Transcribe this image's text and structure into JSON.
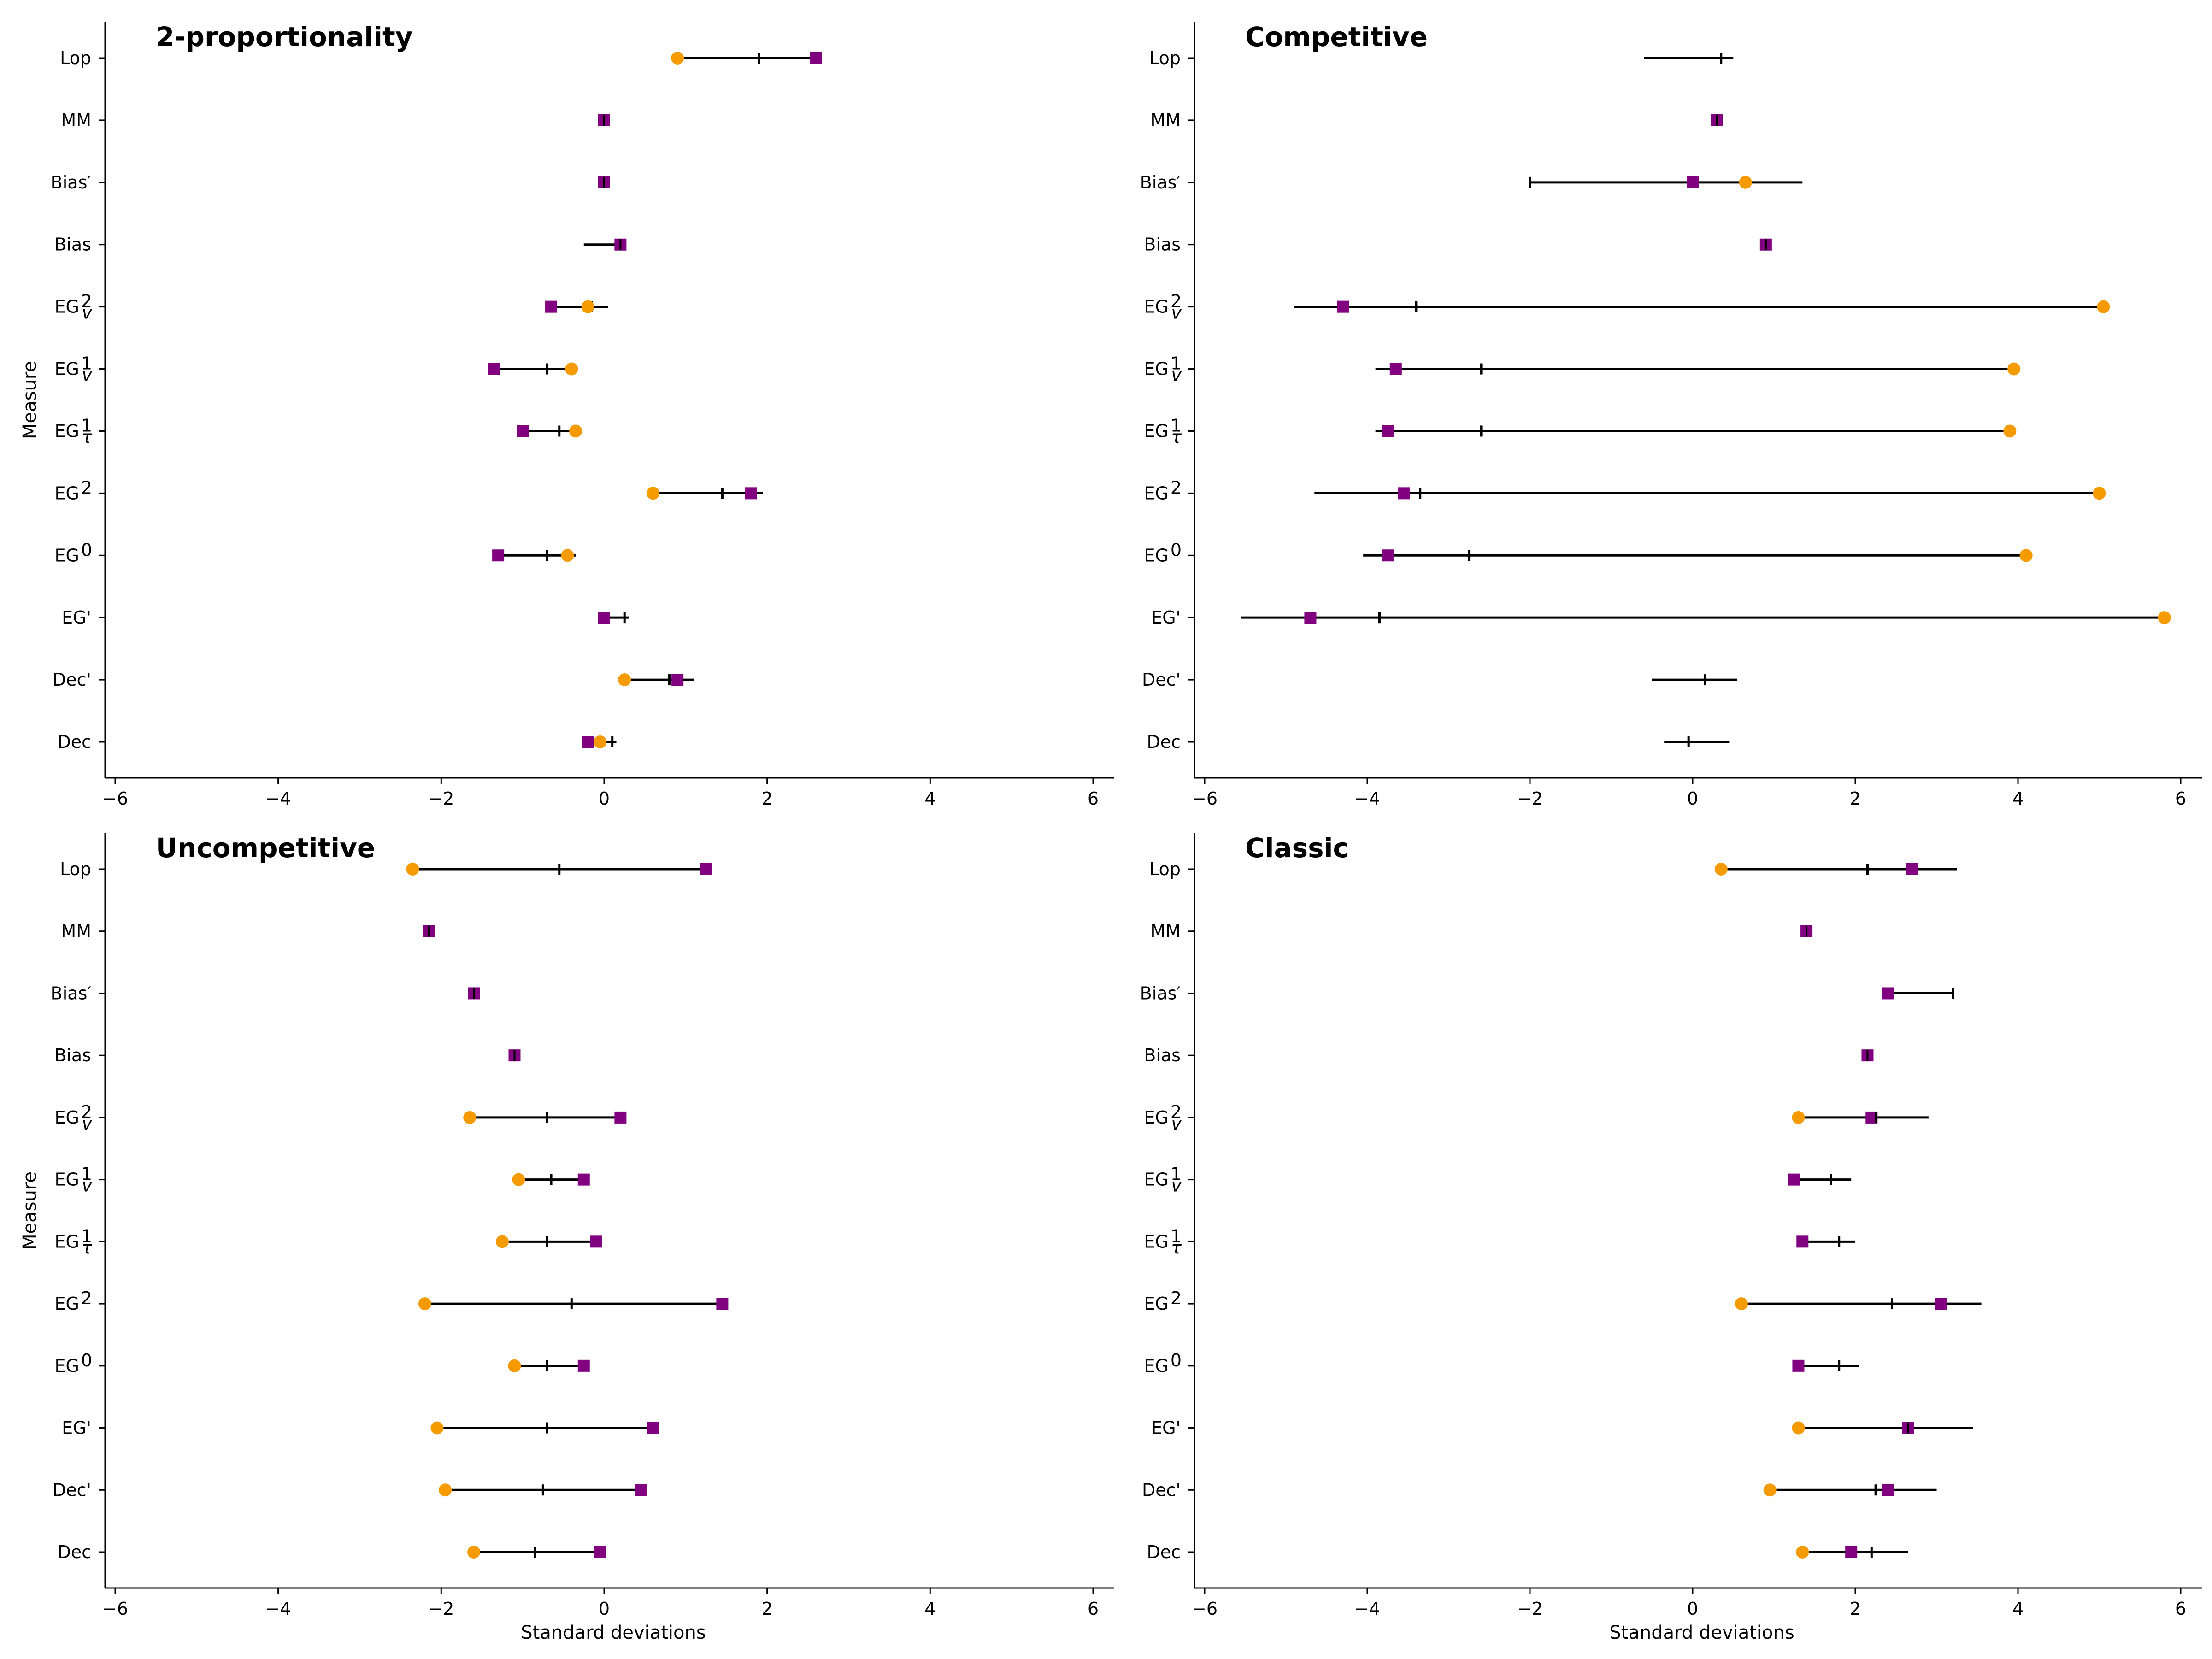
{
  "chart_data": {
    "type": "dot-range",
    "layout": "2x2 panels",
    "xlabel": "Standard deviations",
    "ylabel": "Measure",
    "xlim": [
      -6,
      6
    ],
    "xticks": [
      -6,
      -4,
      -2,
      0,
      2,
      4,
      6
    ],
    "xtick_labels": [
      "−6",
      "−4",
      "−2",
      "0",
      "2",
      "4",
      "6"
    ],
    "categories": [
      {
        "key": "Lop",
        "base": "Lop"
      },
      {
        "key": "MM",
        "base": "MM"
      },
      {
        "key": "Bias'",
        "base": "Bias′"
      },
      {
        "key": "Bias",
        "base": "Bias"
      },
      {
        "key": "EG_v^2",
        "base": "EG",
        "sub": "v",
        "sup": "2"
      },
      {
        "key": "EG_v^1",
        "base": "EG",
        "sub": "v",
        "sup": "1"
      },
      {
        "key": "EG_tau^1",
        "base": "EG",
        "sub": "τ",
        "sup": "1"
      },
      {
        "key": "EG^2",
        "base": "EG",
        "sup": "2"
      },
      {
        "key": "EG^0",
        "base": "EG",
        "sup": "0"
      },
      {
        "key": "EG'",
        "base": "EG'"
      },
      {
        "key": "Dec'",
        "base": "Dec'"
      },
      {
        "key": "Dec",
        "base": "Dec"
      }
    ],
    "series_style": {
      "orange_marker": {
        "shape": "circle",
        "color": "#f59b00"
      },
      "purple_marker": {
        "shape": "square",
        "color": "#800080"
      },
      "range_line": {
        "color": "#000000"
      },
      "center_tick": {
        "color": "#000000"
      }
    },
    "panels": [
      {
        "title": "2-proportionality",
        "rows": [
          {
            "lo": 0.9,
            "hi": 2.6,
            "tick": 1.9,
            "orange": 0.9,
            "purple": 2.6
          },
          {
            "lo": 0.0,
            "hi": 0.0,
            "tick": 0.0,
            "orange": null,
            "purple": 0.0
          },
          {
            "lo": 0.0,
            "hi": 0.0,
            "tick": 0.0,
            "orange": null,
            "purple": 0.0
          },
          {
            "lo": -0.25,
            "hi": 0.2,
            "tick": 0.2,
            "orange": null,
            "purple": 0.2
          },
          {
            "lo": -0.65,
            "hi": 0.05,
            "tick": -0.15,
            "orange": -0.2,
            "purple": -0.65
          },
          {
            "lo": -1.35,
            "hi": -0.35,
            "tick": -0.7,
            "orange": -0.4,
            "purple": -1.35
          },
          {
            "lo": -1.0,
            "hi": -0.3,
            "tick": -0.55,
            "orange": -0.35,
            "purple": -1.0
          },
          {
            "lo": 0.6,
            "hi": 1.95,
            "tick": 1.45,
            "orange": 0.6,
            "purple": 1.8
          },
          {
            "lo": -1.3,
            "hi": -0.35,
            "tick": -0.7,
            "orange": -0.45,
            "purple": -1.3
          },
          {
            "lo": 0.0,
            "hi": 0.3,
            "tick": 0.25,
            "orange": null,
            "purple": 0.0
          },
          {
            "lo": 0.25,
            "hi": 1.1,
            "tick": 0.8,
            "orange": 0.25,
            "purple": 0.9
          },
          {
            "lo": -0.2,
            "hi": 0.15,
            "tick": 0.1,
            "orange": -0.05,
            "purple": -0.2
          }
        ]
      },
      {
        "title": "Competitive",
        "rows": [
          {
            "lo": -0.6,
            "hi": 0.5,
            "tick": 0.35,
            "orange": null,
            "purple": null
          },
          {
            "lo": 0.3,
            "hi": 0.3,
            "tick": 0.3,
            "orange": null,
            "purple": 0.3
          },
          {
            "lo": -2.0,
            "hi": 1.35,
            "tick": -2.0,
            "orange": 0.65,
            "purple": 0.0
          },
          {
            "lo": 0.9,
            "hi": 0.9,
            "tick": 0.9,
            "orange": null,
            "purple": 0.9
          },
          {
            "lo": -4.9,
            "hi": 5.05,
            "tick": -3.4,
            "orange": 5.05,
            "purple": -4.3
          },
          {
            "lo": -3.9,
            "hi": 3.95,
            "tick": -2.6,
            "orange": 3.95,
            "purple": -3.65
          },
          {
            "lo": -3.9,
            "hi": 3.9,
            "tick": -2.6,
            "orange": 3.9,
            "purple": -3.75
          },
          {
            "lo": -4.65,
            "hi": 5.0,
            "tick": -3.35,
            "orange": 5.0,
            "purple": -3.55
          },
          {
            "lo": -4.05,
            "hi": 4.1,
            "tick": -2.75,
            "orange": 4.1,
            "purple": -3.75
          },
          {
            "lo": -5.55,
            "hi": 5.8,
            "tick": -3.85,
            "orange": 5.8,
            "purple": -4.7
          },
          {
            "lo": -0.5,
            "hi": 0.55,
            "tick": 0.15,
            "orange": null,
            "purple": null
          },
          {
            "lo": -0.35,
            "hi": 0.45,
            "tick": -0.05,
            "orange": null,
            "purple": null
          }
        ]
      },
      {
        "title": "Uncompetitive",
        "rows": [
          {
            "lo": -2.35,
            "hi": 1.25,
            "tick": -0.55,
            "orange": -2.35,
            "purple": 1.25
          },
          {
            "lo": -2.15,
            "hi": -2.15,
            "tick": -2.15,
            "orange": null,
            "purple": -2.15
          },
          {
            "lo": -1.6,
            "hi": -1.6,
            "tick": -1.6,
            "orange": null,
            "purple": -1.6
          },
          {
            "lo": -1.1,
            "hi": -1.1,
            "tick": -1.1,
            "orange": null,
            "purple": -1.1
          },
          {
            "lo": -1.65,
            "hi": 0.2,
            "tick": -0.7,
            "orange": -1.65,
            "purple": 0.2
          },
          {
            "lo": -1.05,
            "hi": -0.25,
            "tick": -0.65,
            "orange": -1.05,
            "purple": -0.25
          },
          {
            "lo": -1.25,
            "hi": -0.1,
            "tick": -0.7,
            "orange": -1.25,
            "purple": -0.1
          },
          {
            "lo": -2.2,
            "hi": 1.45,
            "tick": -0.4,
            "orange": -2.2,
            "purple": 1.45
          },
          {
            "lo": -1.1,
            "hi": -0.25,
            "tick": -0.7,
            "orange": -1.1,
            "purple": -0.25
          },
          {
            "lo": -2.05,
            "hi": 0.6,
            "tick": -0.7,
            "orange": -2.05,
            "purple": 0.6
          },
          {
            "lo": -1.95,
            "hi": 0.45,
            "tick": -0.75,
            "orange": -1.95,
            "purple": 0.45
          },
          {
            "lo": -1.6,
            "hi": -0.05,
            "tick": -0.85,
            "orange": -1.6,
            "purple": -0.05
          }
        ]
      },
      {
        "title": "Classic",
        "rows": [
          {
            "lo": 0.35,
            "hi": 3.25,
            "tick": 2.15,
            "orange": 0.35,
            "purple": 2.7
          },
          {
            "lo": 1.4,
            "hi": 1.4,
            "tick": 1.4,
            "orange": null,
            "purple": 1.4
          },
          {
            "lo": 2.4,
            "hi": 3.2,
            "tick": 3.2,
            "orange": null,
            "purple": 2.4
          },
          {
            "lo": 2.15,
            "hi": 2.15,
            "tick": 2.15,
            "orange": null,
            "purple": 2.15
          },
          {
            "lo": 1.3,
            "hi": 2.9,
            "tick": 2.25,
            "orange": 1.3,
            "purple": 2.2
          },
          {
            "lo": 1.2,
            "hi": 1.95,
            "tick": 1.7,
            "orange": null,
            "purple": 1.25
          },
          {
            "lo": 1.35,
            "hi": 2.0,
            "tick": 1.8,
            "orange": null,
            "purple": 1.35
          },
          {
            "lo": 0.6,
            "hi": 3.55,
            "tick": 2.45,
            "orange": 0.6,
            "purple": 3.05
          },
          {
            "lo": 1.25,
            "hi": 2.05,
            "tick": 1.8,
            "orange": null,
            "purple": 1.3
          },
          {
            "lo": 1.3,
            "hi": 3.45,
            "tick": 2.65,
            "orange": 1.3,
            "purple": 2.65
          },
          {
            "lo": 0.95,
            "hi": 3.0,
            "tick": 2.25,
            "orange": 0.95,
            "purple": 2.4
          },
          {
            "lo": 1.35,
            "hi": 2.65,
            "tick": 2.2,
            "orange": 1.35,
            "purple": 1.95
          }
        ]
      }
    ]
  }
}
